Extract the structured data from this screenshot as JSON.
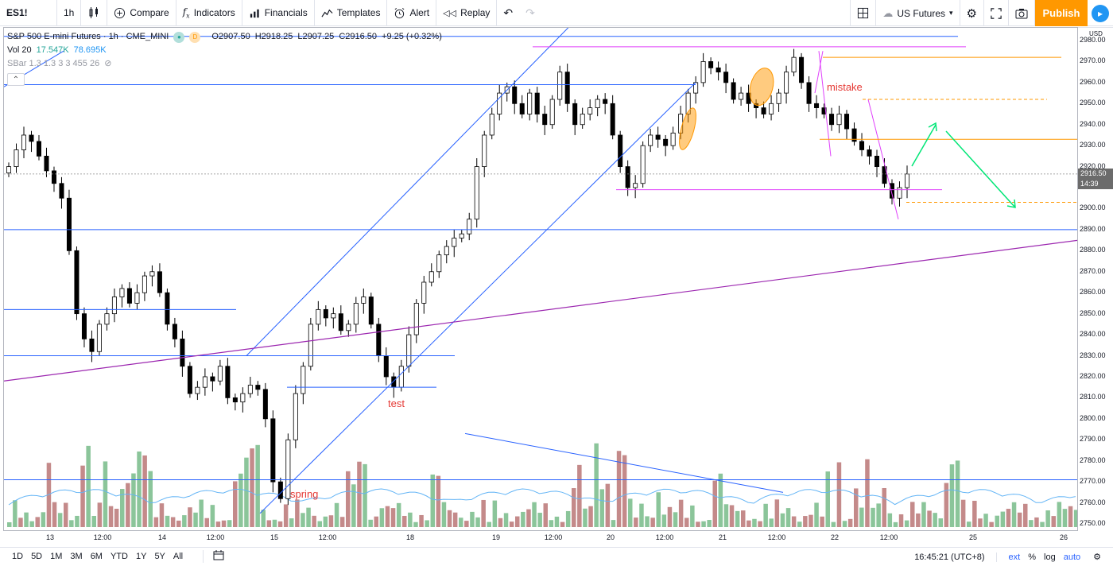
{
  "toolbar": {
    "symbol": "ES1!",
    "interval": "1h",
    "chart_type_icon": "candles-icon",
    "compare": "Compare",
    "indicators": "Indicators",
    "financials": "Financials",
    "templates": "Templates",
    "alert": "Alert",
    "replay": "Replay",
    "layout_icon": "layout-grid-icon",
    "market": "US Futures",
    "publish": "Publish"
  },
  "legend": {
    "title": "S&P 500 E-mini Futures · 1h · CME_MINI",
    "open": "O2907.50",
    "high": "H2918.25",
    "low": "L2907.25",
    "close": "C2916.50",
    "change": "+9.25 (+0.32%)",
    "vol_label": "Vol 20",
    "vol_value1": "17.547K",
    "vol_value2": "78.695K",
    "sbar_label": "SBar 1.3 1.3 3 3 455 26",
    "badge_d": "D"
  },
  "price_axis": {
    "currency": "USD",
    "labels": [
      "2980.00",
      "2970.00",
      "2960.00",
      "2950.00",
      "2940.00",
      "2930.00",
      "2920.00",
      "2900.00",
      "2890.00",
      "2880.00",
      "2870.00",
      "2860.00",
      "2850.00",
      "2840.00",
      "2830.00",
      "2820.00",
      "2810.00",
      "2800.00",
      "2790.00",
      "2780.00",
      "2770.00",
      "2760.00",
      "2750.00"
    ],
    "last_price": "2916.50",
    "countdown": "14:39",
    "partial_label": "2"
  },
  "time_axis": {
    "labels": [
      "13",
      "12:00",
      "14",
      "12:00",
      "15",
      "12:00",
      "18",
      "19",
      "12:00",
      "20",
      "12:00",
      "21",
      "12:00",
      "22",
      "12:00",
      "25",
      "26"
    ]
  },
  "annotations": {
    "mistake": "mistake",
    "test": "test",
    "spring": "spring"
  },
  "bottom_bar": {
    "ranges": [
      "1D",
      "5D",
      "1M",
      "3M",
      "6M",
      "YTD",
      "1Y",
      "5Y",
      "All"
    ],
    "clock": "16:45:21 (UTC+8)",
    "ext": "ext",
    "percent": "%",
    "log": "log",
    "auto": "auto"
  },
  "colors": {
    "up_candle": "#ffffff",
    "down_candle": "#000000",
    "vol_up": "#8bc59a",
    "vol_down": "#c48a8a",
    "trend_blue": "#2962ff",
    "channel_purple": "#9c27b0",
    "magenta": "#e040fb",
    "orange": "#ff9800",
    "green_arrow": "#00e676",
    "accent": "#2196f3",
    "publish": "#ff9800"
  },
  "chart_data": {
    "type": "candlestick",
    "symbol": "S&P 500 E-mini Futures",
    "interval": "1h",
    "ylim": [
      2748,
      2984
    ],
    "last": 2916.5,
    "close_series": [
      2920,
      2928,
      2935,
      2932,
      2925,
      2918,
      2912,
      2905,
      2880,
      2850,
      2838,
      2832,
      2845,
      2850,
      2858,
      2862,
      2855,
      2860,
      2868,
      2870,
      2860,
      2845,
      2838,
      2825,
      2812,
      2815,
      2820,
      2818,
      2825,
      2810,
      2808,
      2812,
      2816,
      2814,
      2800,
      2770,
      2762,
      2790,
      2812,
      2825,
      2845,
      2852,
      2848,
      2850,
      2842,
      2845,
      2855,
      2858,
      2845,
      2830,
      2820,
      2815,
      2825,
      2840,
      2855,
      2865,
      2870,
      2878,
      2882,
      2886,
      2888,
      2895,
      2920,
      2935,
      2945,
      2955,
      2958,
      2950,
      2945,
      2955,
      2945,
      2940,
      2952,
      2965,
      2950,
      2940,
      2945,
      2948,
      2952,
      2950,
      2935,
      2920,
      2910,
      2912,
      2930,
      2935,
      2933,
      2930,
      2936,
      2945,
      2955,
      2960,
      2970,
      2967,
      2965,
      2960,
      2952,
      2955,
      2950,
      2948,
      2945,
      2950,
      2955,
      2965,
      2972,
      2960,
      2950,
      2948,
      2945,
      2940,
      2945,
      2938,
      2932,
      2928,
      2925,
      2920,
      2912,
      2905,
      2910,
      2916.5
    ]
  }
}
